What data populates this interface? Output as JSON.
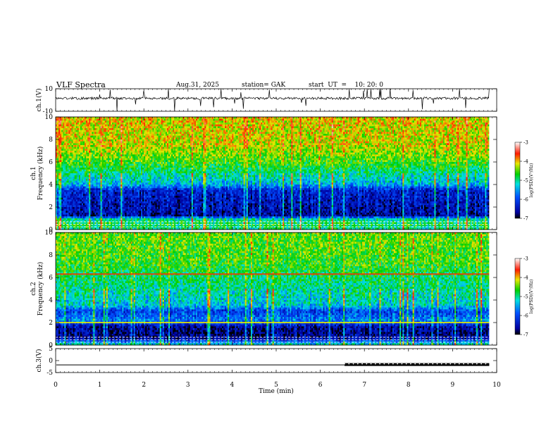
{
  "header": {
    "title": "VLF  Spectra",
    "date": "Aug.31, 2025",
    "station": "station= GAK",
    "start_ut": "start  UT  =    10: 20: 0"
  },
  "chart_data": [
    {
      "type": "line",
      "name": "ch1-waveform",
      "ylabel": "ch.1(V)",
      "ylim": [
        -10,
        10
      ],
      "y_ticks": [
        "10",
        "-10"
      ],
      "y_tick_values": [
        10,
        -10
      ],
      "baseline": 1.5,
      "time_end_min": 9.83
    },
    {
      "type": "heatmap",
      "name": "ch1-spectrogram",
      "ylabel": "ch.1\nFrequency  (kHz)",
      "ylim": [
        0,
        10
      ],
      "y_ticks": [
        "0",
        "2",
        "4",
        "6",
        "8",
        "10"
      ],
      "y_tick_values": [
        0,
        2,
        4,
        6,
        8,
        10
      ],
      "time_end_min": 9.83,
      "profile_khz": [
        0,
        0.5,
        1.0,
        1.2,
        2.0,
        3.5,
        4.0,
        5.0,
        6.0,
        7.5,
        10.0
      ],
      "profile_log_psd": [
        -5.0,
        -4.8,
        -5.2,
        -6.6,
        -6.5,
        -6.3,
        -5.4,
        -5.0,
        -4.6,
        -4.2,
        -4.1
      ]
    },
    {
      "type": "heatmap",
      "name": "ch2-spectrogram",
      "ylabel": "ch.2\nFrequency  (kHz)",
      "ylim": [
        0,
        10
      ],
      "y_ticks": [
        "0",
        "2",
        "4",
        "6",
        "8",
        "10"
      ],
      "y_tick_values": [
        0,
        2,
        4,
        6,
        8,
        10
      ],
      "time_end_min": 9.83,
      "profile_khz": [
        0,
        0.6,
        1.0,
        1.6,
        2.2,
        3.0,
        3.5,
        4.5,
        6.0,
        7.5,
        10.0
      ],
      "profile_log_psd": [
        -5.0,
        -6.6,
        -6.7,
        -6.6,
        -5.6,
        -6.1,
        -5.3,
        -5.1,
        -4.9,
        -4.6,
        -4.5
      ],
      "line_khz": [
        6.3,
        2.0
      ]
    },
    {
      "type": "line",
      "name": "ch3-waveform",
      "ylabel": "ch.3(V)",
      "ylim": [
        -5,
        5
      ],
      "y_ticks": [
        "5",
        "0",
        "-5"
      ],
      "y_tick_values": [
        5,
        0,
        -5
      ],
      "level_v": -1.8,
      "marker_start_min": 6.55,
      "time_end_min": 9.83
    }
  ],
  "x_axis": {
    "label": "Time  (min)",
    "range": [
      0,
      10
    ],
    "ticks": [
      "0",
      "1",
      "2",
      "3",
      "4",
      "5",
      "6",
      "7",
      "8",
      "9",
      "10"
    ],
    "tick_values": [
      0,
      1,
      2,
      3,
      4,
      5,
      6,
      7,
      8,
      9,
      10
    ]
  },
  "colorbars": [
    {
      "name": "ch1-colorbar",
      "label": "log(PSD)(V²/Hz)",
      "range": [
        -7,
        -3
      ],
      "ticks": [
        "-3",
        "-4",
        "-5",
        "-6",
        "-7"
      ],
      "tick_values": [
        -3,
        -4,
        -5,
        -6,
        -7
      ]
    },
    {
      "name": "ch2-colorbar",
      "label": "log(PSD)(V²/Hz)",
      "range": [
        -7,
        -3
      ],
      "ticks": [
        "-3",
        "-4",
        "-5",
        "-6",
        "-7"
      ],
      "tick_values": [
        -3,
        -4,
        -5,
        -6,
        -7
      ]
    }
  ]
}
